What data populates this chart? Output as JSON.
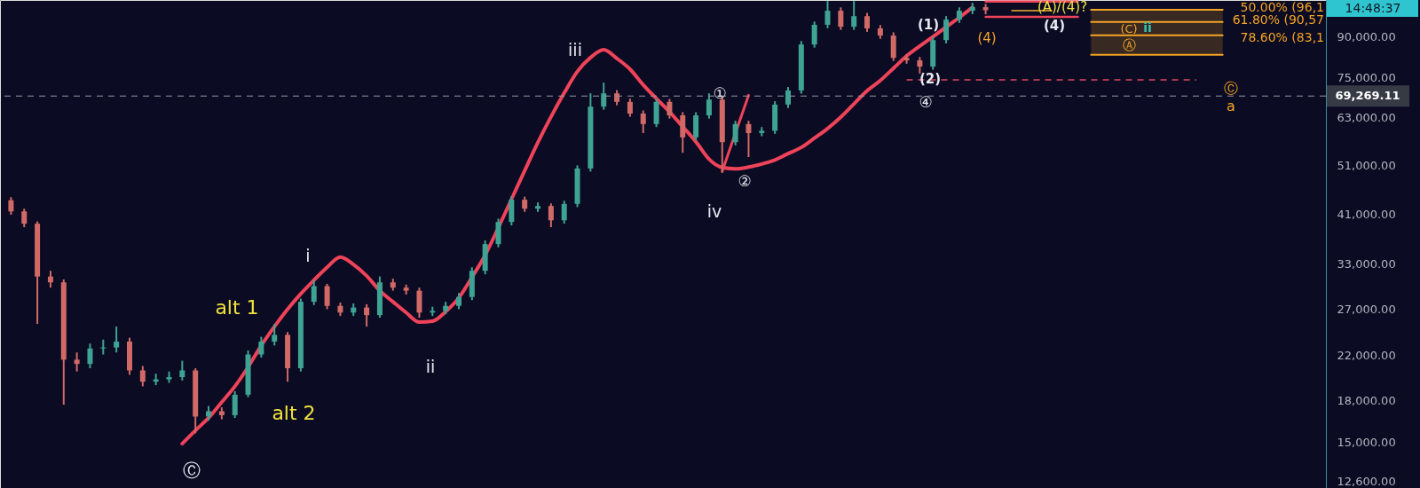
{
  "chart_data": {
    "type": "candlestick",
    "categories": [
      null,
      null,
      null,
      null,
      null,
      null,
      null,
      null,
      null,
      null,
      null,
      null,
      null,
      null,
      null,
      null,
      null,
      null,
      null,
      null,
      null,
      null,
      null,
      null,
      null,
      null,
      null,
      null,
      null,
      null,
      null,
      null,
      null,
      null,
      null,
      null,
      null,
      null,
      null,
      null,
      null,
      null,
      null,
      null,
      null,
      null,
      null,
      null,
      null,
      null,
      null,
      null,
      null,
      null,
      null,
      null,
      null,
      null,
      null,
      null,
      null,
      null,
      null,
      null,
      null,
      null,
      null,
      null,
      null,
      null,
      null,
      null,
      null,
      null,
      null,
      null,
      null,
      null,
      null,
      null,
      null,
      null,
      null,
      null,
      null,
      null,
      null,
      null,
      null,
      null,
      null,
      null,
      null,
      null,
      null,
      null,
      null,
      null,
      null,
      null
    ],
    "ohlc": [
      [
        43700,
        44300,
        41000,
        41600
      ],
      [
        41600,
        42100,
        38800,
        39400
      ],
      [
        39400,
        39800,
        25300,
        31200
      ],
      [
        31200,
        32000,
        29700,
        30400
      ],
      [
        30400,
        30800,
        17700,
        21600
      ],
      [
        21600,
        22300,
        20500,
        21200
      ],
      [
        21200,
        23200,
        20800,
        22700
      ],
      [
        22700,
        23600,
        22100,
        22800
      ],
      [
        22800,
        25000,
        22300,
        23400
      ],
      [
        23400,
        23800,
        20200,
        20600
      ],
      [
        20600,
        21000,
        19200,
        19600
      ],
      [
        19600,
        20300,
        19300,
        19800
      ],
      [
        19800,
        20500,
        19500,
        20000
      ],
      [
        20000,
        21500,
        19700,
        20600
      ],
      [
        20600,
        20800,
        15600,
        16800
      ],
      [
        16800,
        17600,
        16500,
        17200
      ],
      [
        17200,
        17500,
        16600,
        16900
      ],
      [
        16900,
        18800,
        16700,
        18500
      ],
      [
        18500,
        22500,
        18300,
        22100
      ],
      [
        22100,
        23900,
        21800,
        23400
      ],
      [
        23400,
        25300,
        23000,
        24100
      ],
      [
        24100,
        24400,
        19600,
        20800
      ],
      [
        20800,
        28300,
        20500,
        27900
      ],
      [
        27900,
        30700,
        27500,
        29900
      ],
      [
        29900,
        30200,
        27000,
        27400
      ],
      [
        27400,
        27800,
        26200,
        26600
      ],
      [
        26600,
        27700,
        26200,
        27200
      ],
      [
        27200,
        27600,
        25000,
        26300
      ],
      [
        26300,
        31200,
        26000,
        30400
      ],
      [
        30400,
        30900,
        29300,
        29700
      ],
      [
        29700,
        30100,
        28800,
        29300
      ],
      [
        29300,
        29700,
        26000,
        26600
      ],
      [
        26600,
        27300,
        26200,
        26800
      ],
      [
        26800,
        27900,
        26400,
        27400
      ],
      [
        27400,
        29000,
        27000,
        28500
      ],
      [
        28500,
        32500,
        28100,
        32000
      ],
      [
        32000,
        36600,
        31500,
        36000
      ],
      [
        36000,
        40300,
        35500,
        39700
      ],
      [
        39700,
        44500,
        39100,
        43800
      ],
      [
        43800,
        44400,
        41500,
        42100
      ],
      [
        42100,
        43300,
        41500,
        42600
      ],
      [
        42600,
        43100,
        38800,
        40000
      ],
      [
        40000,
        43600,
        39400,
        43000
      ],
      [
        43000,
        51000,
        42400,
        50300
      ],
      [
        50300,
        70100,
        49600,
        66100
      ],
      [
        66100,
        73500,
        65200,
        70100
      ],
      [
        70100,
        71100,
        66500,
        67500
      ],
      [
        67500,
        68500,
        63200,
        64100
      ],
      [
        64100,
        65000,
        58800,
        61200
      ],
      [
        61200,
        68500,
        60400,
        67500
      ],
      [
        67500,
        68400,
        62700,
        63600
      ],
      [
        63600,
        64500,
        53900,
        57700
      ],
      [
        57700,
        64500,
        56900,
        63600
      ],
      [
        63600,
        70100,
        62700,
        68200
      ],
      [
        68200,
        69200,
        49300,
        56500
      ],
      [
        56500,
        62100,
        55700,
        61200
      ],
      [
        61200,
        62100,
        52900,
        58800
      ],
      [
        58800,
        60400,
        58000,
        59400
      ],
      [
        59400,
        67700,
        58600,
        66700
      ],
      [
        66700,
        72100,
        65700,
        71000
      ],
      [
        71000,
        88300,
        70000,
        87000
      ],
      [
        87000,
        96300,
        85800,
        94900
      ],
      [
        94900,
        105400,
        93500,
        101000
      ],
      [
        101000,
        102500,
        92800,
        94100
      ],
      [
        94100,
        105400,
        92800,
        98600
      ],
      [
        98600,
        100000,
        92000,
        93400
      ],
      [
        93400,
        94800,
        89200,
        90500
      ],
      [
        90500,
        91800,
        80900,
        82000
      ],
      [
        82000,
        83200,
        79900,
        81100
      ],
      [
        81100,
        82300,
        76500,
        78900
      ],
      [
        78900,
        90000,
        77800,
        88700
      ],
      [
        88700,
        98600,
        87400,
        97100
      ],
      [
        97100,
        102500,
        95700,
        101000
      ],
      [
        101000,
        104600,
        99500,
        102600
      ],
      [
        102600,
        104100,
        99400,
        101200
      ],
      null,
      null,
      null,
      null,
      null,
      null,
      null,
      null,
      null,
      null,
      null,
      null,
      null,
      null,
      null,
      null,
      null,
      null,
      null,
      null,
      null,
      null,
      null,
      null,
      null
    ],
    "colors": [
      "#d16a66",
      "#d16a66",
      "#d16a66",
      "#d16a66",
      "#d16a66",
      "#d16a66",
      "#3fa394",
      "#3fa394",
      "#3fa394",
      "#d16a66",
      "#d16a66",
      "#3fa394",
      "#3fa394",
      "#3fa394",
      "#d16a66",
      "#3fa394",
      "#d16a66",
      "#3fa394",
      "#3fa394",
      "#3fa394",
      "#3fa394",
      "#d16a66",
      "#3fa394",
      "#3fa394",
      "#d16a66",
      "#d16a66",
      "#3fa394",
      "#d16a66",
      "#3fa394",
      "#d16a66",
      "#d16a66",
      "#d16a66",
      "#3fa394",
      "#3fa394",
      "#3fa394",
      "#3fa394",
      "#3fa394",
      "#3fa394",
      "#3fa394",
      "#d16a66",
      "#3fa394",
      "#d16a66",
      "#3fa394",
      "#3fa394",
      "#3fa394",
      "#3fa394",
      "#d16a66",
      "#d16a66",
      "#d16a66",
      "#3fa394",
      "#d16a66",
      "#d16a66",
      "#3fa394",
      "#3fa394",
      "#d16a66",
      "#3fa394",
      "#d16a66",
      "#3fa394",
      "#3fa394",
      "#3fa394",
      "#3fa394",
      "#3fa394",
      "#3fa394",
      "#d16a66",
      "#3fa394",
      "#d16a66",
      "#d16a66",
      "#d16a66",
      "#d16a66",
      "#d16a66",
      "#3fa394",
      "#3fa394",
      "#3fa394",
      "#3fa394",
      "#d16a66",
      null,
      null,
      null,
      null,
      null,
      null,
      null,
      null,
      null,
      null,
      null,
      null,
      null,
      null,
      null,
      null,
      null,
      null,
      null,
      null,
      null,
      null,
      null,
      null,
      null
    ],
    "series": [
      {
        "type": "line",
        "color": "#ef4359",
        "values": [
          null,
          null,
          null,
          null,
          null,
          null,
          null,
          null,
          null,
          null,
          null,
          null,
          null,
          14900,
          15800,
          16700,
          17900,
          19200,
          20900,
          23000,
          25000,
          27000,
          28900,
          30700,
          32500,
          34000,
          32900,
          31300,
          29300,
          27900,
          26600,
          25500,
          25600,
          26700,
          28400,
          31100,
          34300,
          38700,
          43900,
          49800,
          56400,
          63200,
          70200,
          77200,
          82100,
          85000,
          81800,
          78000,
          72800,
          68500,
          64600,
          60500,
          56600,
          52400,
          50500,
          50200,
          50600,
          51300,
          52200,
          53700,
          55200,
          57500,
          60000,
          63100,
          66900,
          70900,
          74200,
          78300,
          82700,
          86400,
          90000,
          94000,
          98000,
          102500,
          null,
          null,
          null,
          null,
          null,
          null,
          null,
          null,
          null,
          null,
          null,
          null,
          null,
          null,
          null,
          null,
          null,
          null,
          null,
          null,
          null,
          null,
          null,
          null,
          null,
          null
        ]
      },
      {
        "type": "line",
        "color": "#ef4359",
        "values": [
          null,
          null,
          null,
          null,
          null,
          null,
          null,
          null,
          null,
          null,
          null,
          null,
          null,
          null,
          null,
          null,
          null,
          null,
          null,
          null,
          null,
          null,
          null,
          null,
          null,
          null,
          null,
          null,
          null,
          null,
          null,
          null,
          null,
          null,
          null,
          null,
          null,
          null,
          null,
          null,
          null,
          null,
          null,
          null,
          null,
          null,
          null,
          null,
          null,
          null,
          null,
          null,
          null,
          null,
          49700,
          58800,
          69500,
          null,
          null,
          null,
          null,
          null,
          null,
          null,
          null,
          null,
          null,
          null,
          null,
          null,
          null,
          null,
          null,
          null,
          null,
          null,
          null,
          null,
          null,
          null,
          null,
          null,
          null,
          null,
          null,
          null,
          null,
          null,
          null,
          null,
          null,
          null,
          null,
          null,
          null,
          null,
          null,
          null,
          null,
          null
        ]
      },
      {
        "type": "line",
        "color": "#ef4359",
        "values": [
          null,
          null,
          null,
          null,
          null,
          null,
          null,
          null,
          null,
          null,
          null,
          null,
          null,
          null,
          null,
          null,
          null,
          null,
          null,
          null,
          null,
          null,
          null,
          null,
          null,
          null,
          null,
          null,
          null,
          null,
          null,
          null,
          null,
          null,
          null,
          null,
          null,
          null,
          null,
          null,
          null,
          null,
          null,
          null,
          null,
          null,
          null,
          null,
          null,
          null,
          null,
          null,
          null,
          null,
          null,
          null,
          null,
          null,
          null,
          null,
          null,
          null,
          null,
          null,
          null,
          null,
          null,
          null,
          null,
          null,
          null,
          null,
          null,
          null,
          105200,
          105200,
          105200,
          105200,
          105200,
          105200,
          105200,
          105200,
          null,
          null,
          null,
          null,
          null,
          null,
          null,
          null,
          null,
          null,
          null,
          null,
          null,
          null,
          null,
          null,
          null,
          null
        ]
      },
      {
        "type": "line",
        "color": "#ef4359",
        "values": [
          null,
          null,
          null,
          null,
          null,
          null,
          null,
          null,
          null,
          null,
          null,
          null,
          null,
          null,
          null,
          null,
          null,
          null,
          null,
          null,
          null,
          null,
          null,
          null,
          null,
          null,
          null,
          null,
          null,
          null,
          null,
          null,
          null,
          null,
          null,
          null,
          null,
          null,
          null,
          null,
          null,
          null,
          null,
          null,
          null,
          null,
          null,
          null,
          null,
          null,
          null,
          null,
          null,
          null,
          null,
          null,
          null,
          null,
          null,
          null,
          null,
          null,
          null,
          null,
          null,
          null,
          null,
          null,
          null,
          null,
          null,
          null,
          null,
          null,
          98300,
          98300,
          98300,
          98300,
          98300,
          98300,
          98300,
          98300,
          null,
          null,
          null,
          null,
          null,
          null,
          null,
          null,
          null,
          null,
          null,
          null,
          null,
          null,
          null,
          null,
          null,
          null
        ]
      },
      {
        "type": "line",
        "color": "#b8862b",
        "values": [
          null,
          null,
          null,
          null,
          null,
          null,
          null,
          null,
          null,
          null,
          null,
          null,
          null,
          null,
          null,
          null,
          null,
          null,
          null,
          null,
          null,
          null,
          null,
          null,
          null,
          null,
          null,
          null,
          null,
          null,
          null,
          null,
          null,
          null,
          null,
          null,
          null,
          null,
          null,
          null,
          null,
          null,
          null,
          null,
          null,
          null,
          null,
          null,
          null,
          null,
          null,
          null,
          null,
          null,
          null,
          null,
          null,
          null,
          null,
          null,
          null,
          null,
          null,
          null,
          null,
          null,
          null,
          null,
          null,
          null,
          null,
          null,
          null,
          null,
          null,
          null,
          101000,
          101000,
          101000,
          101000,
          null,
          null,
          null,
          null,
          null,
          null,
          null,
          null,
          null,
          null,
          null,
          null,
          null,
          null,
          null,
          null,
          null,
          null,
          null,
          null
        ]
      },
      {
        "type": "line",
        "color": "#f5a524",
        "values": [
          null,
          null,
          null,
          null,
          null,
          null,
          null,
          null,
          null,
          null,
          null,
          null,
          null,
          null,
          null,
          null,
          null,
          null,
          null,
          null,
          null,
          null,
          null,
          null,
          null,
          null,
          null,
          null,
          null,
          null,
          null,
          null,
          null,
          null,
          null,
          null,
          null,
          null,
          null,
          null,
          null,
          null,
          null,
          null,
          null,
          null,
          null,
          null,
          null,
          null,
          null,
          null,
          null,
          null,
          null,
          null,
          null,
          null,
          null,
          null,
          null,
          null,
          null,
          null,
          null,
          null,
          null,
          null,
          null,
          null,
          null,
          null,
          null,
          null,
          null,
          null,
          null,
          null,
          null,
          null,
          null,
          null,
          101400,
          101400,
          101400,
          101400,
          101400,
          101400,
          101400,
          101400,
          101400,
          101400,
          101400,
          null,
          null,
          null,
          null,
          null,
          null,
          null
        ],
        "lower": [
          null,
          null,
          null,
          null,
          null,
          null,
          null,
          null,
          null,
          null,
          null,
          null,
          null,
          null,
          null,
          null,
          null,
          null,
          null,
          null,
          null,
          null,
          null,
          null,
          null,
          null,
          null,
          null,
          null,
          null,
          null,
          null,
          null,
          null,
          null,
          null,
          null,
          null,
          null,
          null,
          null,
          null,
          null,
          null,
          null,
          null,
          null,
          null,
          null,
          null,
          null,
          null,
          null,
          null,
          null,
          null,
          null,
          null,
          null,
          null,
          null,
          null,
          null,
          null,
          null,
          null,
          null,
          null,
          null,
          null,
          null,
          null,
          null,
          null,
          null,
          null,
          null,
          null,
          null,
          null,
          null,
          null,
          83150,
          83150,
          83150,
          83150,
          83150,
          83150,
          83150,
          83150,
          83150,
          83150,
          83150,
          null,
          null,
          null,
          null,
          null,
          null,
          null
        ],
        "upper": [
          null,
          null,
          null,
          null,
          null,
          null,
          null,
          null,
          null,
          null,
          null,
          null,
          null,
          null,
          null,
          null,
          null,
          null,
          null,
          null,
          null,
          null,
          null,
          null,
          null,
          null,
          null,
          null,
          null,
          null,
          null,
          null,
          null,
          null,
          null,
          null,
          null,
          null,
          null,
          null,
          null,
          null,
          null,
          null,
          null,
          null,
          null,
          null,
          null,
          null,
          null,
          null,
          null,
          null,
          null,
          null,
          null,
          null,
          null,
          null,
          null,
          null,
          null,
          null,
          null,
          null,
          null,
          null,
          null,
          null,
          null,
          null,
          null,
          null,
          null,
          null,
          null,
          null,
          null,
          null,
          null,
          null,
          101400,
          101400,
          101400,
          101400,
          101400,
          101400,
          101400,
          101400,
          101400,
          101400,
          101400,
          null,
          null,
          null,
          null,
          null,
          null,
          null
        ]
      },
      {
        "type": "line",
        "color": "#f5a524",
        "values": [
          null,
          null,
          null,
          null,
          null,
          null,
          null,
          null,
          null,
          null,
          null,
          null,
          null,
          null,
          null,
          null,
          null,
          null,
          null,
          null,
          null,
          null,
          null,
          null,
          null,
          null,
          null,
          null,
          null,
          null,
          null,
          null,
          null,
          null,
          null,
          null,
          null,
          null,
          null,
          null,
          null,
          null,
          null,
          null,
          null,
          null,
          null,
          null,
          null,
          null,
          null,
          null,
          null,
          null,
          null,
          null,
          null,
          null,
          null,
          null,
          null,
          null,
          null,
          null,
          null,
          null,
          null,
          null,
          null,
          null,
          null,
          null,
          null,
          null,
          null,
          null,
          null,
          null,
          null,
          null,
          null,
          null,
          96150,
          96150,
          96150,
          96150,
          96150,
          96150,
          96150,
          96150,
          96150,
          96150,
          96150,
          null,
          null,
          null,
          null,
          null,
          null,
          null
        ]
      },
      {
        "type": "line",
        "color": "#f5a524",
        "values": [
          null,
          null,
          null,
          null,
          null,
          null,
          null,
          null,
          null,
          null,
          null,
          null,
          null,
          null,
          null,
          null,
          null,
          null,
          null,
          null,
          null,
          null,
          null,
          null,
          null,
          null,
          null,
          null,
          null,
          null,
          null,
          null,
          null,
          null,
          null,
          null,
          null,
          null,
          null,
          null,
          null,
          null,
          null,
          null,
          null,
          null,
          null,
          null,
          null,
          null,
          null,
          null,
          null,
          null,
          null,
          null,
          null,
          null,
          null,
          null,
          null,
          null,
          null,
          null,
          null,
          null,
          null,
          null,
          null,
          null,
          null,
          null,
          null,
          null,
          null,
          null,
          null,
          null,
          null,
          null,
          null,
          null,
          90570,
          90570,
          90570,
          90570,
          90570,
          90570,
          90570,
          90570,
          90570,
          90570,
          90570,
          null,
          null,
          null,
          null,
          null,
          null,
          null
        ]
      },
      {
        "type": "line",
        "color": "#f5a524",
        "values": [
          null,
          null,
          null,
          null,
          null,
          null,
          null,
          null,
          null,
          null,
          null,
          null,
          null,
          null,
          null,
          null,
          null,
          null,
          null,
          null,
          null,
          null,
          null,
          null,
          null,
          null,
          null,
          null,
          null,
          null,
          null,
          null,
          null,
          null,
          null,
          null,
          null,
          null,
          null,
          null,
          null,
          null,
          null,
          null,
          null,
          null,
          null,
          null,
          null,
          null,
          null,
          null,
          null,
          null,
          null,
          null,
          null,
          null,
          null,
          null,
          null,
          null,
          null,
          null,
          null,
          null,
          null,
          null,
          null,
          null,
          null,
          null,
          null,
          null,
          null,
          null,
          null,
          null,
          null,
          null,
          null,
          null,
          83150,
          83150,
          83150,
          83150,
          83150,
          83150,
          83150,
          83150,
          83150,
          83150,
          83150,
          null,
          null,
          null,
          null,
          null,
          null,
          null
        ]
      },
      {
        "type": "line",
        "color": "#e04a5f",
        "line_style": "dashed",
        "values": [
          null,
          null,
          null,
          null,
          null,
          null,
          null,
          null,
          null,
          null,
          null,
          null,
          null,
          null,
          null,
          null,
          null,
          null,
          null,
          null,
          null,
          null,
          null,
          null,
          null,
          null,
          null,
          null,
          null,
          null,
          null,
          null,
          null,
          null,
          null,
          null,
          null,
          null,
          null,
          null,
          null,
          null,
          null,
          null,
          null,
          null,
          null,
          null,
          null,
          null,
          null,
          null,
          null,
          null,
          null,
          null,
          null,
          null,
          null,
          null,
          null,
          null,
          null,
          null,
          null,
          null,
          null,
          null,
          74400,
          74400,
          74400,
          74400,
          74400,
          74400,
          74400,
          74400,
          74400,
          74400,
          74400,
          74400,
          74400,
          74400,
          74400,
          74400,
          74400,
          74400,
          74400,
          74400,
          74400,
          74400,
          74400,
          null,
          null,
          null,
          null,
          null,
          null,
          null,
          null,
          null
        ]
      }
    ],
    "ylim": [
      12250,
      105900
    ],
    "yticks": [
      {
        "value": 12600,
        "label": "12,600.00"
      },
      {
        "value": 15000,
        "label": "15,000.00"
      },
      {
        "value": 18000,
        "label": "18,000.00"
      },
      {
        "value": 22000,
        "label": "22,000.00"
      },
      {
        "value": 27000,
        "label": "27,000.00"
      },
      {
        "value": 33000,
        "label": "33,000.00"
      },
      {
        "value": 41000,
        "label": "41,000.00"
      },
      {
        "value": 51000,
        "label": "51,000.00"
      },
      {
        "value": 63000,
        "label": "63,000.00"
      },
      {
        "value": 75000,
        "label": "75,000.00"
      },
      {
        "value": 90000,
        "label": "90,000.00"
      }
    ],
    "log": true,
    "tick_labels": "y",
    "ref_lines": [
      {
        "axis": "y",
        "value": 69269.11,
        "label": "69,269.11",
        "color": "#9598a1",
        "line_style": "dashed"
      }
    ],
    "annotations": [
      "alt 1",
      "alt 2",
      "i",
      "ii",
      "iii",
      "iv",
      "Ⓒ",
      "①",
      "②",
      "④",
      "(1)",
      "(2)",
      "(4)",
      "(4)",
      "(A)/(4)?",
      "(C)",
      "Ⓐ",
      "ii",
      "Ⓒ",
      "a",
      "50.00% (96,1",
      "61.80% (90,57",
      "78.60% (83,1",
      "14:48:37"
    ]
  }
}
